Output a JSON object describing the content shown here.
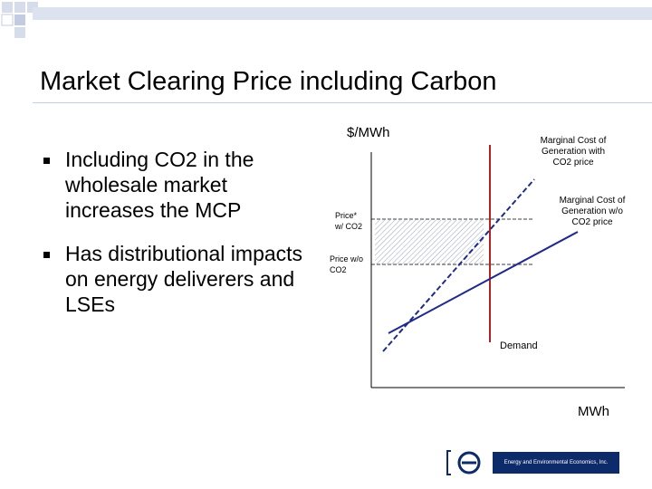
{
  "slide": {
    "title": "Market Clearing Price including Carbon",
    "bullets": [
      {
        "text": "Including CO2 in the wholesale market increases the MCP"
      },
      {
        "text": "Has distributional impacts on energy deliverers and LSEs"
      }
    ]
  },
  "diagram": {
    "y_axis_label": "$/MWh",
    "x_axis_label": "MWh",
    "labels": {
      "mc_with_co2_line1": "Marginal Cost of",
      "mc_with_co2_line2": "Generation with",
      "mc_with_co2_line3": "CO2 price",
      "mc_without_co2_line1": "Marginal Cost of",
      "mc_without_co2_line2": "Generation w/o",
      "mc_without_co2_line3": "CO2 price",
      "price_with_co2_line1": "Price*",
      "price_with_co2_line2": "w/ CO2",
      "price_without_co2_line1": "Price w/o",
      "price_without_co2_line2": "CO2",
      "demand": "Demand"
    },
    "colors": {
      "supply_with_co2": "#1f2a8a",
      "supply_without_co2": "#1f2a8a",
      "demand": "#b22222",
      "hatch": "#9aa3b8"
    }
  },
  "logo": {
    "text": "Energy and Environmental Economics, Inc."
  }
}
